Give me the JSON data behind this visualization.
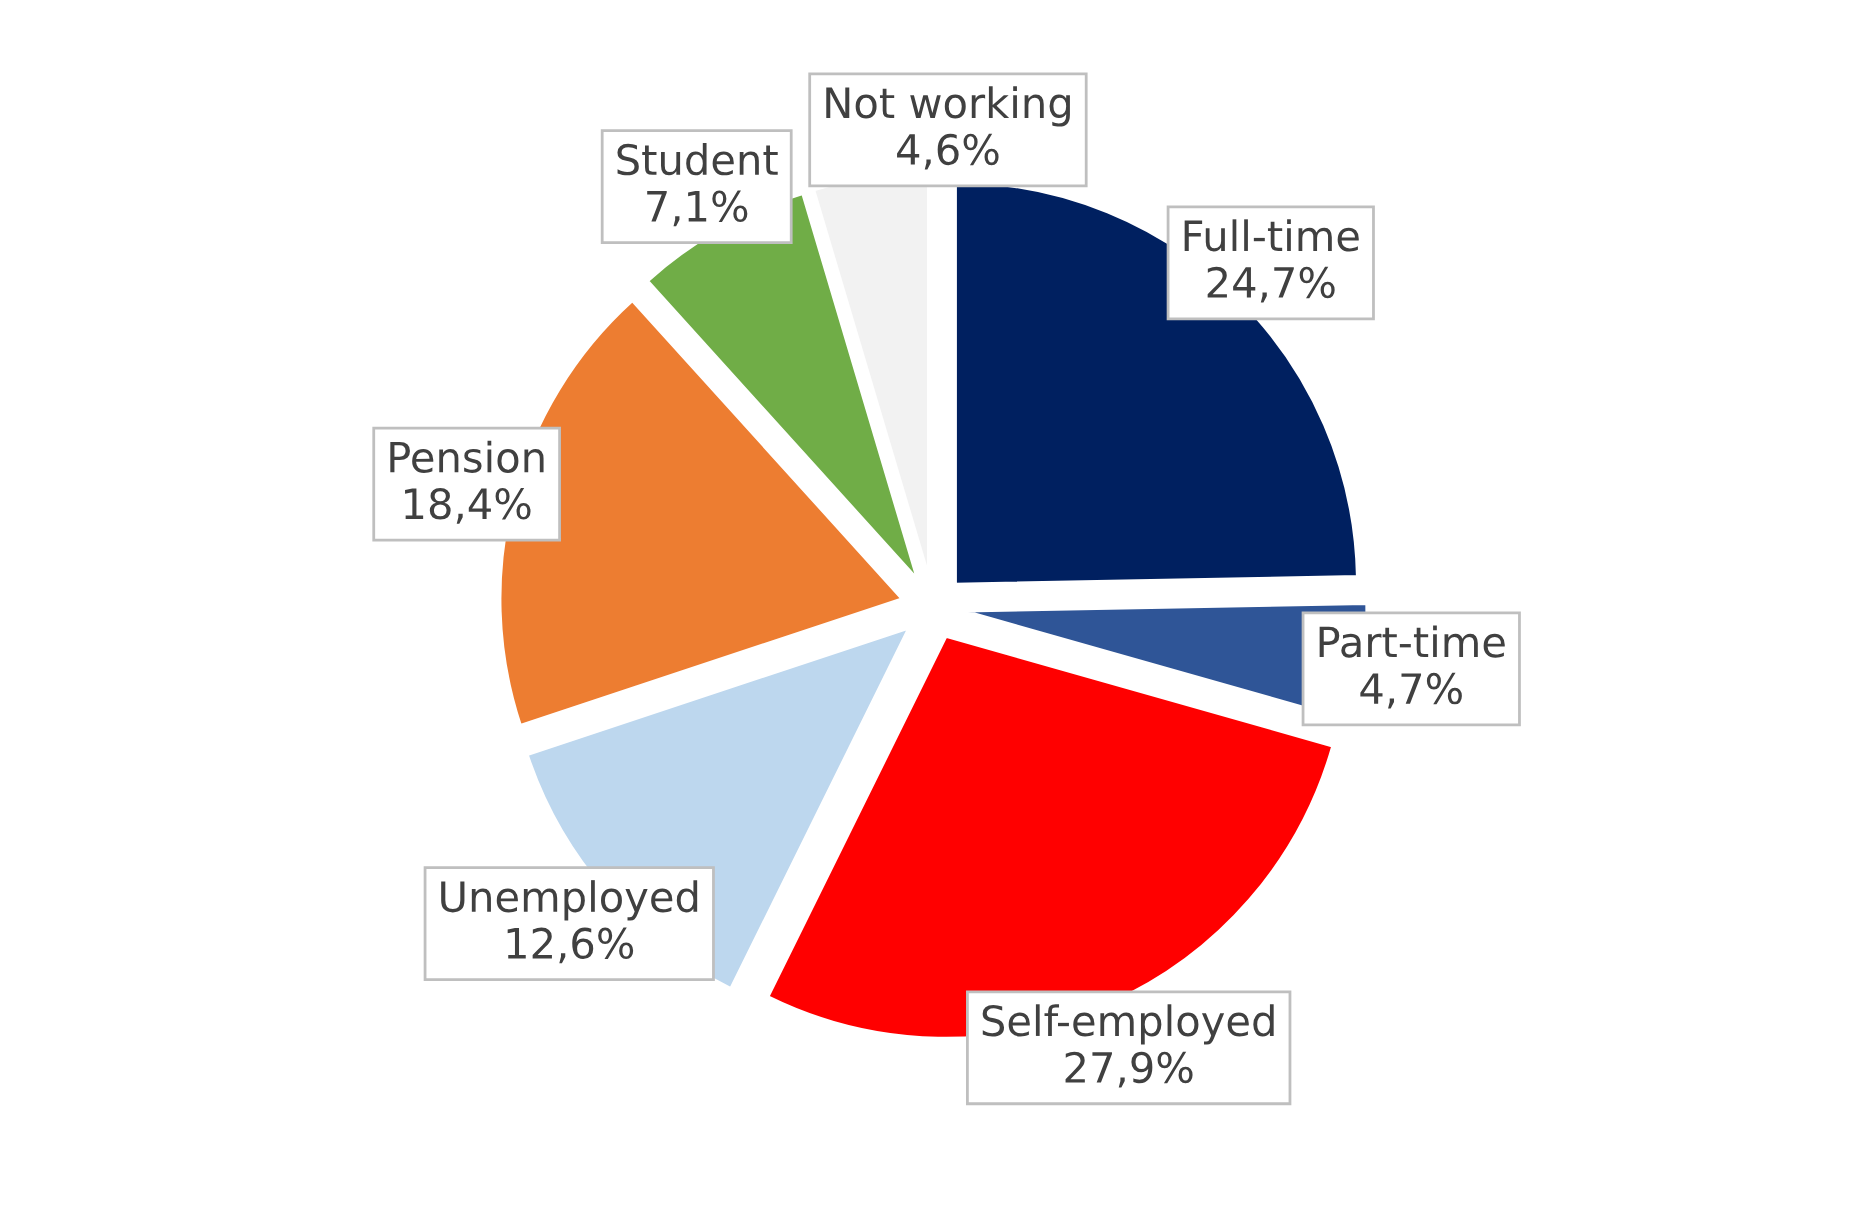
{
  "chart_data": {
    "type": "pie",
    "categories": [
      "Full-time",
      "Part-time",
      "Self-employed",
      "Unemployed",
      "Pension",
      "Student",
      "Not working"
    ],
    "values": [
      24.7,
      4.7,
      27.9,
      12.6,
      18.4,
      7.1,
      4.6
    ],
    "value_labels": [
      "24,7%",
      "4,7%",
      "27,9%",
      "12,6%",
      "18,4%",
      "7,1%",
      "4,6%"
    ],
    "colors": [
      "#002060",
      "#2f5597",
      "#ff0000",
      "#bdd7ee",
      "#ed7d31",
      "#70ad47",
      "#f2f2f2"
    ],
    "legend": false
  }
}
